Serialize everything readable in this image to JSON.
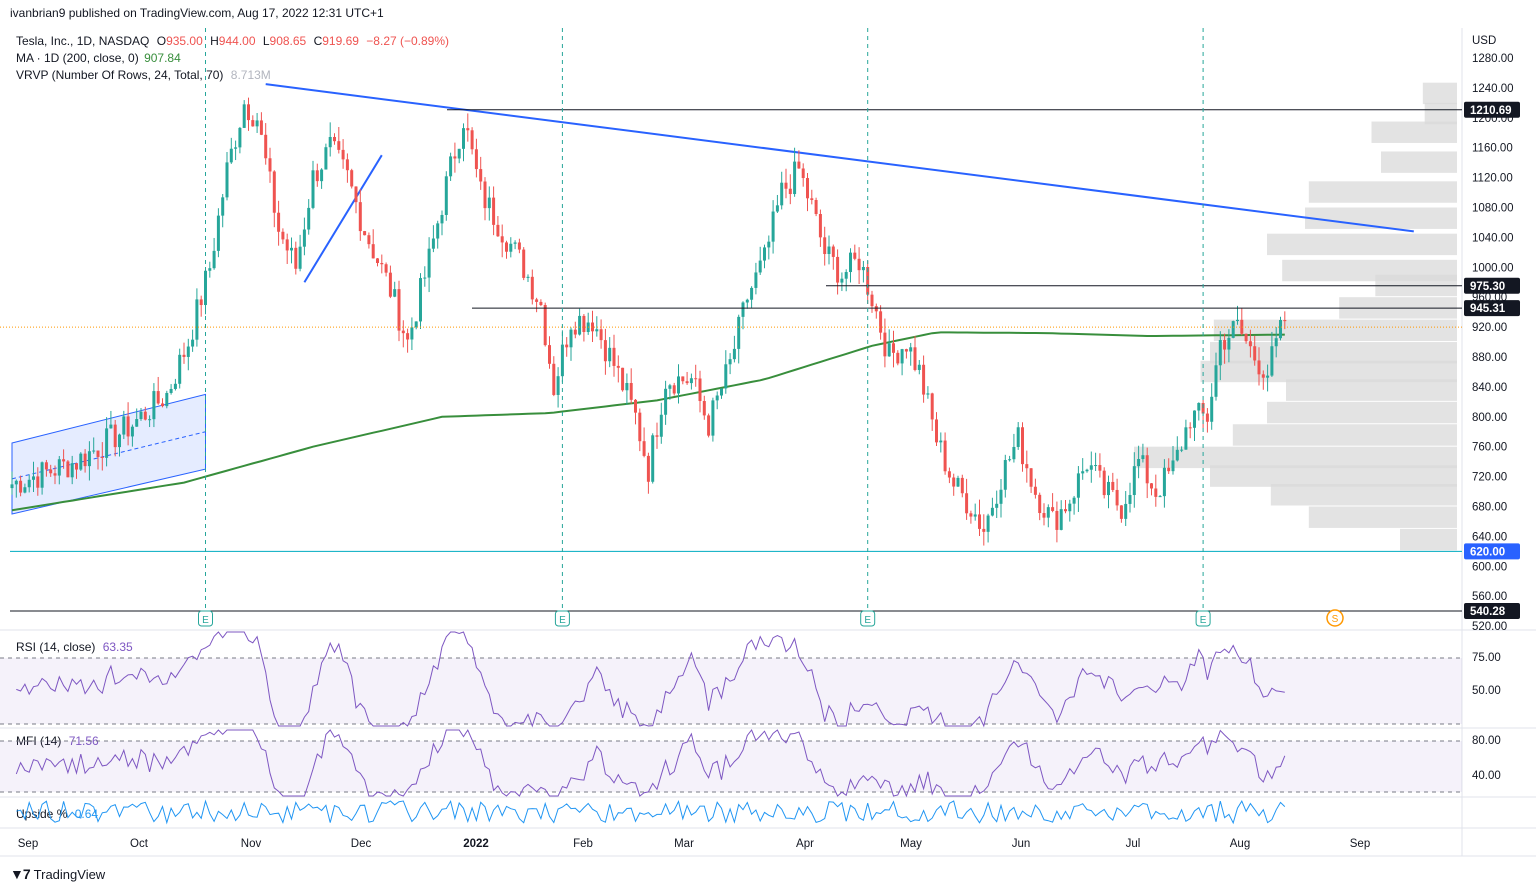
{
  "header": {
    "publisher": "ivanbrian9 published on TradingView.com, Aug 17, 2022 12:31 UTC+1"
  },
  "legend": {
    "symbol": "Tesla, Inc., 1D, NASDAQ",
    "o_label": "O",
    "o": "935.00",
    "h_label": "H",
    "h": "944.00",
    "l_label": "L",
    "l": "908.65",
    "c_label": "C",
    "c": "919.69",
    "change": "−8.27 (−0.89%)",
    "ma_label": "MA · 1D (200, close, 0)",
    "ma_value": "907.84",
    "vrvp_label": "VRVP (Number Of Rows, 24, Total, 70)",
    "vrvp_value": "8.713M"
  },
  "indicators": {
    "rsi_label": "RSI (14, close)",
    "rsi_value": "63.35",
    "mfi_label": "MFI (14)",
    "mfi_value": "71.56",
    "upside_label": "Upside %",
    "upside_value": "0.64"
  },
  "footer": {
    "brand": "TradingView"
  },
  "colors": {
    "up": "#26a69a",
    "down": "#ef5350",
    "ma": "#388e3c",
    "trend": "#2962ff",
    "support": "#00acc1",
    "vrvp": "#d9d9d9",
    "osc": "#7e57c2",
    "upside": "#2196f3"
  },
  "chart_data": {
    "type": "candlestick",
    "currency": "USD",
    "price_axis": {
      "ticks": [
        "1280.00",
        "1240.00",
        "1200.00",
        "1160.00",
        "1120.00",
        "1080.00",
        "1040.00",
        "1000.00",
        "960.00",
        "920.00",
        "880.00",
        "840.00",
        "800.00",
        "760.00",
        "720.00",
        "680.00",
        "640.00",
        "600.00",
        "560.00",
        "520.00"
      ],
      "ylim": [
        520,
        1290
      ]
    },
    "time_axis": {
      "labels": [
        "Sep",
        "Oct",
        "Nov",
        "Dec",
        "2022",
        "Feb",
        "Mar",
        "Apr",
        "May",
        "Jun",
        "Jul",
        "Aug",
        "Sep"
      ],
      "bold_label": "2022"
    },
    "price_levels": [
      {
        "value": 1210.69,
        "label": "1210.69",
        "kind": "resistance"
      },
      {
        "value": 975.3,
        "label": "975.30",
        "kind": "resistance"
      },
      {
        "value": 945.31,
        "label": "945.31",
        "kind": "resistance"
      },
      {
        "value": 620.0,
        "label": "620.00",
        "kind": "support"
      },
      {
        "value": 540.28,
        "label": "540.28",
        "kind": "support"
      }
    ],
    "earnings_markers": [
      "E",
      "E",
      "E",
      "E"
    ],
    "split_marker": "S",
    "rsi_levels": [
      "75.00",
      "50.00"
    ],
    "mfi_levels": [
      "80.00",
      "40.00"
    ],
    "anchors": [
      {
        "d": 0,
        "p": 710
      },
      {
        "d": 15,
        "p": 740
      },
      {
        "d": 28,
        "p": 790
      },
      {
        "d": 36,
        "p": 830
      },
      {
        "d": 41,
        "p": 900
      },
      {
        "d": 46,
        "p": 1000
      },
      {
        "d": 50,
        "p": 1130
      },
      {
        "d": 54,
        "p": 1220
      },
      {
        "d": 57,
        "p": 1200
      },
      {
        "d": 62,
        "p": 1050
      },
      {
        "d": 66,
        "p": 1000
      },
      {
        "d": 70,
        "p": 1120
      },
      {
        "d": 74,
        "p": 1160
      },
      {
        "d": 78,
        "p": 1120
      },
      {
        "d": 82,
        "p": 1050
      },
      {
        "d": 88,
        "p": 970
      },
      {
        "d": 92,
        "p": 900
      },
      {
        "d": 97,
        "p": 1010
      },
      {
        "d": 101,
        "p": 1110
      },
      {
        "d": 105,
        "p": 1200
      },
      {
        "d": 109,
        "p": 1100
      },
      {
        "d": 114,
        "p": 1050
      },
      {
        "d": 119,
        "p": 1000
      },
      {
        "d": 123,
        "p": 950
      },
      {
        "d": 126,
        "p": 840
      },
      {
        "d": 130,
        "p": 930
      },
      {
        "d": 135,
        "p": 930
      },
      {
        "d": 140,
        "p": 870
      },
      {
        "d": 145,
        "p": 800
      },
      {
        "d": 148,
        "p": 730
      },
      {
        "d": 152,
        "p": 850
      },
      {
        "d": 158,
        "p": 850
      },
      {
        "d": 162,
        "p": 790
      },
      {
        "d": 167,
        "p": 870
      },
      {
        "d": 171,
        "p": 960
      },
      {
        "d": 175,
        "p": 1010
      },
      {
        "d": 179,
        "p": 1100
      },
      {
        "d": 183,
        "p": 1130
      },
      {
        "d": 186,
        "p": 1080
      },
      {
        "d": 189,
        "p": 1020
      },
      {
        "d": 193,
        "p": 990
      },
      {
        "d": 197,
        "p": 1010
      },
      {
        "d": 200,
        "p": 960
      },
      {
        "d": 204,
        "p": 880
      },
      {
        "d": 208,
        "p": 900
      },
      {
        "d": 211,
        "p": 860
      },
      {
        "d": 215,
        "p": 770
      },
      {
        "d": 219,
        "p": 710
      },
      {
        "d": 223,
        "p": 680
      },
      {
        "d": 226,
        "p": 650
      },
      {
        "d": 230,
        "p": 720
      },
      {
        "d": 234,
        "p": 770
      },
      {
        "d": 238,
        "p": 700
      },
      {
        "d": 242,
        "p": 660
      },
      {
        "d": 246,
        "p": 690
      },
      {
        "d": 250,
        "p": 740
      },
      {
        "d": 254,
        "p": 700
      },
      {
        "d": 258,
        "p": 680
      },
      {
        "d": 262,
        "p": 740
      },
      {
        "d": 266,
        "p": 700
      },
      {
        "d": 270,
        "p": 730
      },
      {
        "d": 274,
        "p": 800
      },
      {
        "d": 278,
        "p": 800
      },
      {
        "d": 281,
        "p": 900
      },
      {
        "d": 285,
        "p": 920
      },
      {
        "d": 289,
        "p": 880
      },
      {
        "d": 292,
        "p": 860
      },
      {
        "d": 296,
        "p": 930
      }
    ],
    "ma_anchors": [
      {
        "d": 0,
        "p": 675
      },
      {
        "d": 40,
        "p": 712
      },
      {
        "d": 70,
        "p": 760
      },
      {
        "d": 100,
        "p": 800
      },
      {
        "d": 125,
        "p": 805
      },
      {
        "d": 150,
        "p": 822
      },
      {
        "d": 175,
        "p": 850
      },
      {
        "d": 200,
        "p": 895
      },
      {
        "d": 215,
        "p": 913
      },
      {
        "d": 240,
        "p": 912
      },
      {
        "d": 265,
        "p": 908
      },
      {
        "d": 296,
        "p": 910
      }
    ],
    "vrvp_rows": [
      {
        "price": 1232,
        "volume": 0.18
      },
      {
        "price": 1205,
        "volume": 0.17
      },
      {
        "price": 1180,
        "volume": 0.45
      },
      {
        "price": 1140,
        "volume": 0.4
      },
      {
        "price": 1100,
        "volume": 0.78
      },
      {
        "price": 1065,
        "volume": 0.8
      },
      {
        "price": 1030,
        "volume": 1.0
      },
      {
        "price": 995,
        "volume": 0.92
      },
      {
        "price": 975,
        "volume": 0.43
      },
      {
        "price": 945,
        "volume": 0.62
      },
      {
        "price": 915,
        "volume": 1.28
      },
      {
        "price": 885,
        "volume": 1.3
      },
      {
        "price": 860,
        "volume": 1.35
      },
      {
        "price": 835,
        "volume": 0.9
      },
      {
        "price": 805,
        "volume": 1.0
      },
      {
        "price": 775,
        "volume": 1.18
      },
      {
        "price": 745,
        "volume": 1.7
      },
      {
        "price": 720,
        "volume": 1.3
      },
      {
        "price": 695,
        "volume": 0.98
      },
      {
        "price": 665,
        "volume": 0.78
      },
      {
        "price": 635,
        "volume": 0.3
      }
    ]
  }
}
